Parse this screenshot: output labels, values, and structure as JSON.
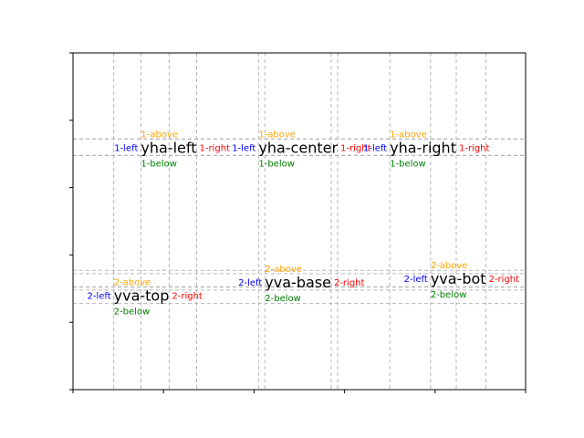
{
  "chart_data": {
    "type": "scatter",
    "xlim": [
      0,
      5
    ],
    "ylim": [
      0,
      5
    ],
    "grid": false,
    "ticks": {
      "x": [
        0,
        1,
        2,
        3,
        4,
        5
      ],
      "y": [
        0,
        1,
        2,
        3,
        4,
        5
      ],
      "labels_visible": false
    },
    "annotation_colors": {
      "above": "#ffa500",
      "left": "#0000ff",
      "right": "#ff0000",
      "below": "#008000",
      "guide": "#b0b0b0"
    },
    "groups": [
      {
        "main": "yha-left",
        "y": 3.6,
        "x": 0.75,
        "align": "left",
        "labels": {
          "above": "1-above",
          "left": "1-left",
          "right": "1-right",
          "below": "1-below"
        }
      },
      {
        "main": "yha-center",
        "y": 3.6,
        "x": 2.05,
        "align": "left",
        "labels": {
          "above": "1-above",
          "left": "1-left",
          "right": "1-right",
          "below": "1-below"
        }
      },
      {
        "main": "yha-right",
        "y": 3.6,
        "x": 3.5,
        "align": "left",
        "labels": {
          "above": "1-above",
          "left": "1-left",
          "right": "1-right",
          "below": "1-below"
        }
      },
      {
        "main": "yva-top",
        "y": 1.4,
        "x": 0.45,
        "align": "left",
        "labels": {
          "above": "2-above",
          "left": "2-left",
          "right": "2-right",
          "below": "2-below"
        }
      },
      {
        "main": "yva-base",
        "y": 1.6,
        "x": 2.12,
        "align": "left",
        "labels": {
          "above": "2-above",
          "left": "2-left",
          "right": "2-right",
          "below": "2-below"
        }
      },
      {
        "main": "yva-bot",
        "y": 1.65,
        "x": 3.95,
        "align": "left",
        "labels": {
          "above": "2-above",
          "left": "2-left",
          "right": "2-right",
          "below": "2-below"
        }
      }
    ]
  }
}
